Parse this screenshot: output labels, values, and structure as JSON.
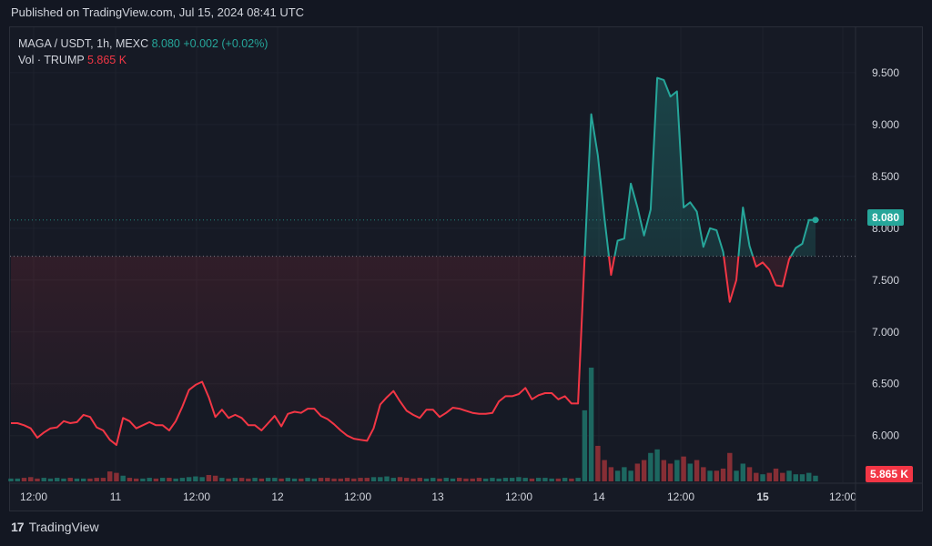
{
  "header": {
    "published": "Published on TradingView.com, Jul 15, 2024 08:41 UTC"
  },
  "legend": {
    "symbol": "MAGA / USDT, 1h, MEXC",
    "price": "8.080",
    "change": "+0.002 (+0.02%)",
    "vol_label": "Vol · TRUMP",
    "vol_value": "5.865 K"
  },
  "badges": {
    "price": "8.080",
    "volume": "5.865 K"
  },
  "footer": {
    "brand": "TradingView"
  },
  "colors": {
    "background": "#131722",
    "up": "#26a69a",
    "down": "#f23645",
    "up_volume": "#1e6b63",
    "down_volume": "#8c2f36",
    "grid": "#1e222d",
    "axis_text": "#d1d4dc"
  },
  "chart_data": {
    "type": "line",
    "baseline_style": true,
    "baseline_value": 7.73,
    "y_ticks": [
      "6.000",
      "6.500",
      "7.000",
      "7.500",
      "8.000",
      "8.500",
      "9.000",
      "9.500"
    ],
    "ylim": [
      5.55,
      9.85
    ],
    "x_ticks": [
      "12:00",
      "11",
      "12:00",
      "12",
      "12:00",
      "13",
      "12:00",
      "14",
      "12:00",
      "15",
      "12:00"
    ],
    "x_ticks_bold": [
      "15"
    ],
    "price": [
      6.12,
      6.12,
      6.1,
      6.07,
      5.98,
      6.03,
      6.07,
      6.08,
      6.14,
      6.12,
      6.13,
      6.2,
      6.18,
      6.08,
      6.05,
      5.96,
      5.91,
      6.17,
      6.14,
      6.07,
      6.1,
      6.13,
      6.1,
      6.1,
      6.05,
      6.14,
      6.28,
      6.44,
      6.49,
      6.52,
      6.37,
      6.18,
      6.25,
      6.17,
      6.2,
      6.17,
      6.1,
      6.1,
      6.05,
      6.12,
      6.19,
      6.09,
      6.21,
      6.23,
      6.22,
      6.26,
      6.26,
      6.19,
      6.16,
      6.11,
      6.05,
      6.0,
      5.97,
      5.96,
      5.95,
      6.07,
      6.3,
      6.37,
      6.43,
      6.33,
      6.24,
      6.2,
      6.17,
      6.25,
      6.25,
      6.18,
      6.22,
      6.27,
      6.26,
      6.24,
      6.22,
      6.21,
      6.21,
      6.22,
      6.33,
      6.38,
      6.38,
      6.4,
      6.46,
      6.35,
      6.39,
      6.41,
      6.41,
      6.35,
      6.38,
      6.31,
      6.31,
      7.73,
      9.1,
      8.7,
      8.1,
      7.55,
      7.88,
      7.9,
      8.43,
      8.2,
      7.93,
      8.18,
      9.45,
      9.43,
      9.27,
      9.32,
      8.2,
      8.25,
      8.16,
      7.82,
      8.0,
      7.98,
      7.77,
      7.29,
      7.5,
      8.2,
      7.83,
      7.63,
      7.67,
      7.6,
      7.45,
      7.44,
      7.7,
      7.81,
      7.85,
      8.08,
      8.08
    ],
    "volume": [
      0.04,
      0.04,
      0.05,
      0.06,
      0.04,
      0.05,
      0.04,
      0.05,
      0.04,
      0.05,
      0.04,
      0.04,
      0.04,
      0.05,
      0.05,
      0.14,
      0.12,
      0.08,
      0.05,
      0.04,
      0.04,
      0.05,
      0.04,
      0.05,
      0.05,
      0.04,
      0.05,
      0.06,
      0.07,
      0.06,
      0.09,
      0.08,
      0.05,
      0.04,
      0.05,
      0.05,
      0.04,
      0.05,
      0.04,
      0.05,
      0.05,
      0.04,
      0.05,
      0.04,
      0.04,
      0.05,
      0.04,
      0.05,
      0.05,
      0.04,
      0.04,
      0.05,
      0.04,
      0.05,
      0.05,
      0.06,
      0.06,
      0.07,
      0.05,
      0.06,
      0.05,
      0.04,
      0.05,
      0.04,
      0.05,
      0.04,
      0.05,
      0.04,
      0.05,
      0.04,
      0.04,
      0.05,
      0.04,
      0.05,
      0.04,
      0.05,
      0.05,
      0.06,
      0.05,
      0.04,
      0.05,
      0.05,
      0.04,
      0.04,
      0.05,
      0.04,
      0.05,
      1.0,
      1.6,
      0.5,
      0.3,
      0.2,
      0.15,
      0.2,
      0.15,
      0.25,
      0.3,
      0.4,
      0.45,
      0.3,
      0.25,
      0.3,
      0.35,
      0.25,
      0.3,
      0.2,
      0.15,
      0.15,
      0.18,
      0.4,
      0.15,
      0.25,
      0.2,
      0.12,
      0.1,
      0.12,
      0.18,
      0.12,
      0.15,
      0.1,
      0.1,
      0.12,
      0.08
    ],
    "volume_max": 1.6
  }
}
